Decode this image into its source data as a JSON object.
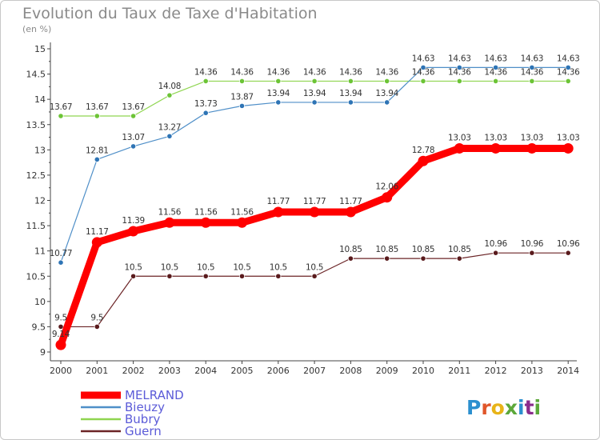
{
  "chart_data": {
    "type": "line",
    "title": "Evolution du Taux de Taxe d'Habitation",
    "subtitle": "(en %)",
    "xlabel": "",
    "ylabel": "",
    "x": [
      "2000",
      "2001",
      "2002",
      "2003",
      "2004",
      "2005",
      "2006",
      "2007",
      "2008",
      "2009",
      "2010",
      "2011",
      "2012",
      "2013",
      "2014"
    ],
    "ylim": [
      9,
      15
    ],
    "yticks": [
      "9",
      "9.5",
      "10",
      "10.5",
      "11",
      "11.5",
      "12",
      "12.5",
      "13",
      "13.5",
      "14",
      "14.5",
      "15"
    ],
    "grid": "y-axis minor ticks only",
    "legend_position": "bottom-left",
    "series": [
      {
        "name": "MELRAND",
        "color": "#ff0000",
        "values": [
          9.14,
          11.17,
          11.39,
          11.56,
          11.56,
          11.56,
          11.77,
          11.77,
          11.77,
          12.06,
          12.78,
          13.03,
          13.03,
          13.03,
          13.03
        ],
        "labels": [
          "9.14",
          "11.17",
          "11.39",
          "11.56",
          "11.56",
          "11.56",
          "11.77",
          "11.77",
          "11.77",
          "12.06",
          "12.78",
          "13.03",
          "13.03",
          "13.03",
          "13.03"
        ]
      },
      {
        "name": "Bieuzy",
        "color": "#4f8fc8",
        "values": [
          10.77,
          12.81,
          13.07,
          13.27,
          13.73,
          13.87,
          13.94,
          13.94,
          13.94,
          13.94,
          14.63,
          14.63,
          14.63,
          14.63,
          14.63
        ],
        "labels": [
          "10.77",
          "12.81",
          "13.07",
          "13.27",
          "13.73",
          "13.87",
          "13.94",
          "13.94",
          "13.94",
          "13.94",
          "14.63",
          "14.63",
          "14.63",
          "14.63",
          "14.63"
        ]
      },
      {
        "name": "Bubry",
        "color": "#8fd550",
        "values": [
          13.67,
          13.67,
          13.67,
          14.08,
          14.36,
          14.36,
          14.36,
          14.36,
          14.36,
          14.36,
          14.36,
          14.36,
          14.36,
          14.36,
          14.36
        ],
        "labels": [
          "13.67",
          "13.67",
          "13.67",
          "14.08",
          "14.36",
          "14.36",
          "14.36",
          "14.36",
          "14.36",
          "14.36",
          "14.36",
          "14.36",
          "14.36",
          "14.36",
          "14.36"
        ]
      },
      {
        "name": "Guern",
        "color": "#6b2426",
        "values": [
          9.5,
          9.5,
          10.5,
          10.5,
          10.5,
          10.5,
          10.5,
          10.5,
          10.85,
          10.85,
          10.85,
          10.85,
          10.96,
          10.96,
          10.96
        ],
        "labels": [
          "9.5",
          "9.5",
          "10.5",
          "10.5",
          "10.5",
          "10.5",
          "10.5",
          "10.5",
          "10.85",
          "10.85",
          "10.85",
          "10.85",
          "10.96",
          "10.96",
          "10.96"
        ]
      }
    ]
  },
  "brand": {
    "logo_text": "Proxiti",
    "letter_colors": [
      "#2b8fcf",
      "#e0562a",
      "#e8b418",
      "#5ca83a",
      "#2b8fcf",
      "#8a2c8c",
      "#5ca83a"
    ]
  }
}
